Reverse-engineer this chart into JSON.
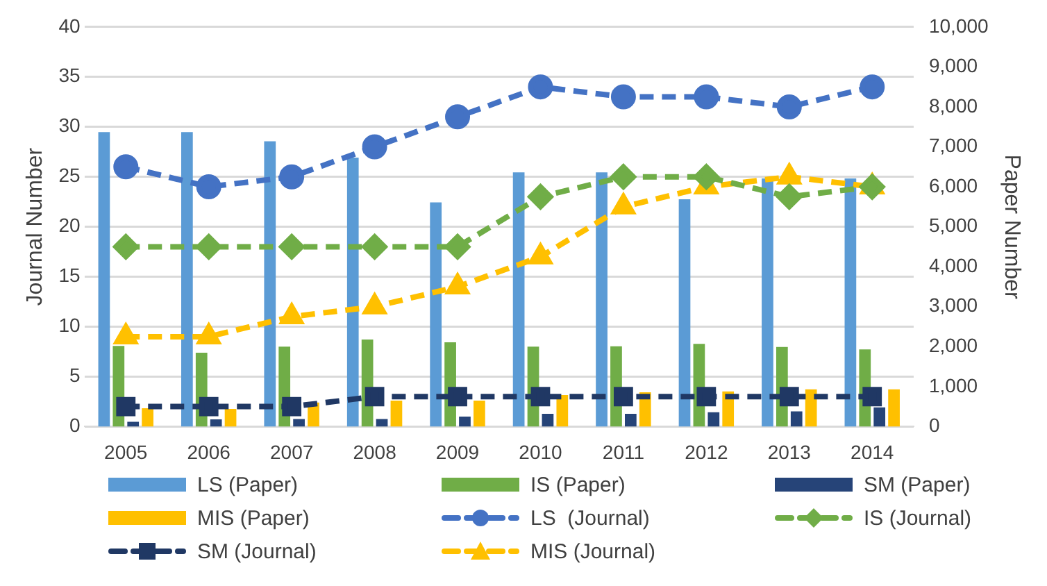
{
  "chart_data": {
    "type": "bar",
    "ylabel": "Journal Number",
    "y2label": "Paper Number",
    "categories": [
      "2005",
      "2006",
      "2007",
      "2008",
      "2009",
      "2010",
      "2011",
      "2012",
      "2013",
      "2014"
    ],
    "series": [
      {
        "name": "LS (Paper)",
        "axis": "y2",
        "color": "#5b9bd5",
        "values": [
          7370,
          7370,
          7140,
          6730,
          5610,
          6360,
          6360,
          5690,
          6210,
          6210
        ]
      },
      {
        "name": "IS (Paper)",
        "axis": "y2",
        "color": "#70ad47",
        "values": [
          2020,
          1850,
          2000,
          2180,
          2110,
          2000,
          2010,
          2070,
          1990,
          1930
        ]
      },
      {
        "name": "SM (Paper)",
        "axis": "y2",
        "color": "#264478",
        "values": [
          120,
          180,
          190,
          190,
          250,
          320,
          320,
          360,
          380,
          480
        ]
      },
      {
        "name": "MIS (Paper)",
        "axis": "y2",
        "color": "#ffc000",
        "values": [
          460,
          440,
          600,
          650,
          650,
          790,
          860,
          880,
          930,
          930
        ]
      },
      {
        "name": "LS  (Journal)",
        "type": "line",
        "marker": "circle",
        "line_style": "dashed",
        "color": "#4472c4",
        "values": [
          26,
          24,
          25,
          28,
          31,
          34,
          33,
          33,
          32,
          34
        ]
      },
      {
        "name": "IS (Journal)",
        "type": "line",
        "marker": "diamond",
        "line_style": "dashed",
        "color": "#70ad47",
        "values": [
          18,
          18,
          18,
          18,
          18,
          23,
          25,
          25,
          23,
          24
        ]
      },
      {
        "name": "SM (Journal)",
        "type": "line",
        "marker": "square",
        "line_style": "dashed",
        "color": "#203864",
        "values": [
          2,
          2,
          2,
          3,
          3,
          3,
          3,
          3,
          3,
          3
        ]
      },
      {
        "name": "MIS (Journal)",
        "type": "line",
        "marker": "triangle",
        "line_style": "dashed",
        "color": "#ffc000",
        "values": [
          9,
          9,
          11,
          12,
          14,
          17,
          22,
          24,
          25,
          24
        ]
      }
    ],
    "ylim": [
      0,
      40
    ],
    "yticks": [
      0,
      5,
      10,
      15,
      20,
      25,
      30,
      35,
      40
    ],
    "y2lim": [
      0,
      10000
    ],
    "y2ticks": [
      0,
      {
        "value": 1000,
        "label": "1,000"
      },
      {
        "value": 2000,
        "label": "2,000"
      },
      {
        "value": 3000,
        "label": "3,000"
      },
      {
        "value": 4000,
        "label": "4,000"
      },
      {
        "value": 5000,
        "label": "5,000"
      },
      {
        "value": 6000,
        "label": "6,000"
      },
      {
        "value": 7000,
        "label": "7,000"
      },
      {
        "value": 8000,
        "label": "8,000"
      },
      {
        "value": 9000,
        "label": "9,000"
      },
      {
        "value": 10000,
        "label": "10,000"
      }
    ],
    "grid": "y",
    "legend": "bottom"
  }
}
